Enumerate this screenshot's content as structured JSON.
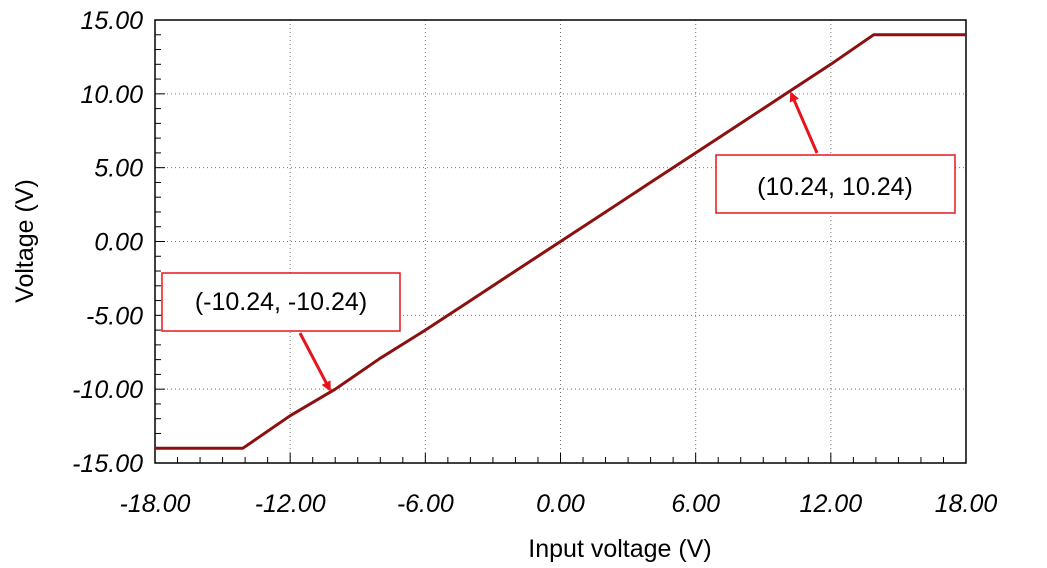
{
  "chart_data": {
    "type": "line",
    "title": "",
    "xlabel": "Input voltage (V)",
    "ylabel": "Voltage (V)",
    "xlim": [
      -18,
      18
    ],
    "ylim": [
      -15,
      15
    ],
    "x_ticks": [
      -18,
      -12,
      -6,
      0,
      6,
      12,
      18
    ],
    "y_ticks": [
      15,
      10,
      5,
      0,
      -5,
      -10,
      -15
    ],
    "x_tick_labels": [
      "-18.00",
      "-12.00",
      "-6.00",
      "0.00",
      "6.00",
      "12.00",
      "18.00"
    ],
    "y_tick_labels": [
      "15.00",
      "10.00",
      "5.00",
      "0.00",
      "-5.00",
      "-10.00",
      "-15.00"
    ],
    "grid": true,
    "series": [
      {
        "color": "#8b1010",
        "x": [
          -18,
          -14.1,
          -12,
          -10,
          -8,
          -6,
          -4,
          -2,
          0,
          2,
          4,
          6,
          8,
          10,
          12,
          13.9,
          18
        ],
        "y": [
          -14,
          -14,
          -11.8,
          -10,
          -7.9,
          -6,
          -4,
          -2,
          0,
          2,
          4,
          6,
          8,
          10,
          12,
          14,
          14
        ]
      }
    ],
    "annotations": [
      {
        "text": "(-10.24, -10.24)",
        "x": -10.24,
        "y": -10.24,
        "color": "#e8141c"
      },
      {
        "text": "(10.24, 10.24)",
        "x": 10.24,
        "y": 10.24,
        "color": "#e8141c"
      }
    ]
  }
}
